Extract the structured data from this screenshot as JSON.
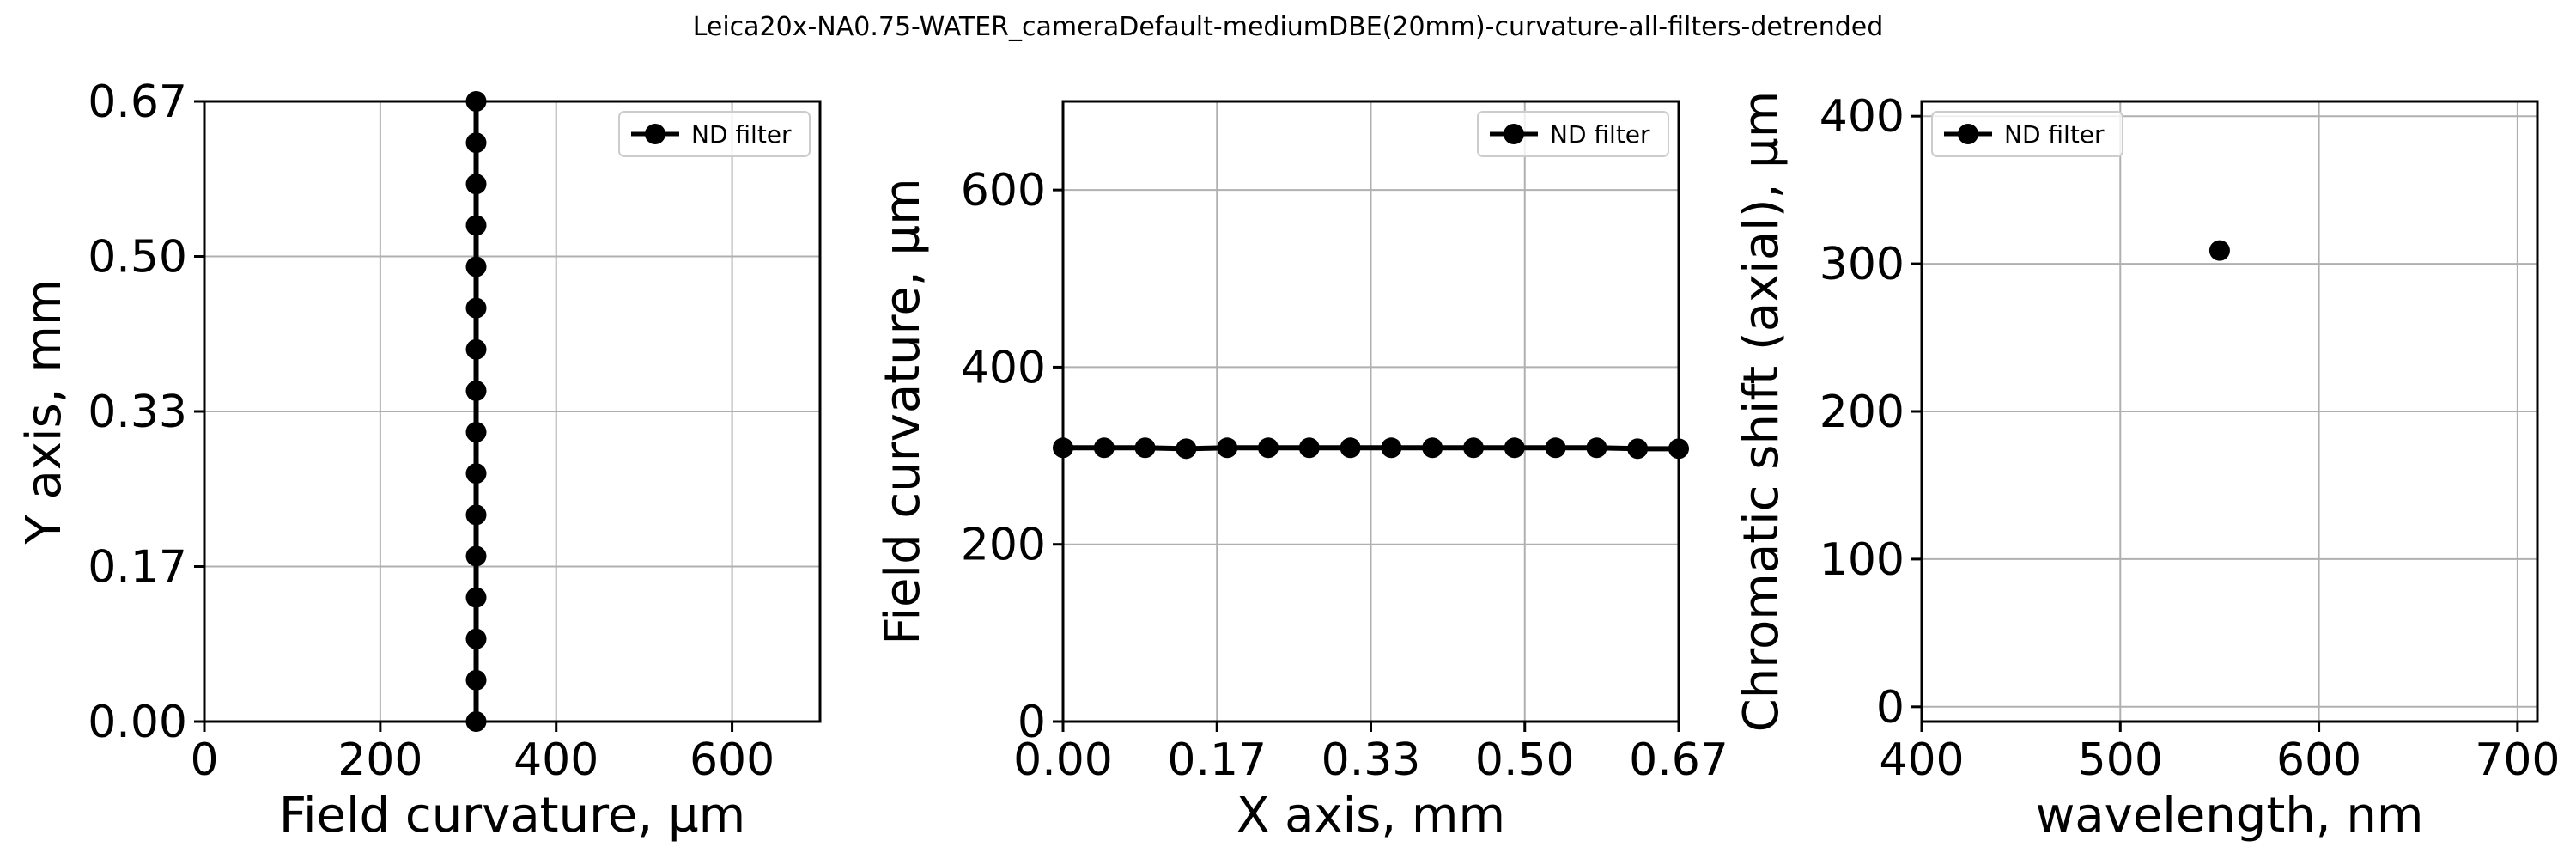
{
  "figure": {
    "title": "Leica20x-NA0.75-WATER_cameraDefault-mediumDBE(20mm)-curvature-all-filters-detrended"
  },
  "chart_data": [
    {
      "type": "line",
      "xlabel": "Field curvature, µm",
      "ylabel": "Y axis, mm",
      "xlim": [
        0,
        700
      ],
      "ylim": [
        0,
        0.67
      ],
      "xticks": [
        0,
        200,
        400,
        600
      ],
      "xtick_labels": [
        "0",
        "200",
        "400",
        "600"
      ],
      "yticks": [
        0,
        0.1675,
        0.335,
        0.5025,
        0.67
      ],
      "ytick_labels": [
        "0.00",
        "0.17",
        "0.33",
        "0.50",
        "0.67"
      ],
      "grid": true,
      "legend_position": "top-right",
      "series": [
        {
          "name": "ND filter",
          "color": "#000000",
          "x": [
            309,
            309,
            309,
            309,
            309,
            309,
            309,
            309,
            309,
            309,
            309,
            309,
            309,
            309,
            309,
            309
          ],
          "y": [
            0,
            0.0447,
            0.0893,
            0.134,
            0.1787,
            0.2233,
            0.268,
            0.3127,
            0.3573,
            0.402,
            0.4467,
            0.4913,
            0.536,
            0.5807,
            0.6253,
            0.67
          ]
        }
      ]
    },
    {
      "type": "line",
      "xlabel": "X axis, mm",
      "ylabel": "Field curvature, µm",
      "xlim": [
        0,
        0.67
      ],
      "ylim": [
        0,
        700
      ],
      "xticks": [
        0,
        0.1675,
        0.335,
        0.5025,
        0.67
      ],
      "xtick_labels": [
        "0.00",
        "0.17",
        "0.33",
        "0.50",
        "0.67"
      ],
      "yticks": [
        0,
        200,
        400,
        600
      ],
      "ytick_labels": [
        "0",
        "200",
        "400",
        "600"
      ],
      "grid": true,
      "legend_position": "top-right",
      "series": [
        {
          "name": "ND filter",
          "color": "#000000",
          "x": [
            0,
            0.0447,
            0.0893,
            0.134,
            0.1787,
            0.2233,
            0.268,
            0.3127,
            0.3573,
            0.402,
            0.4467,
            0.4913,
            0.536,
            0.5807,
            0.6253,
            0.67
          ],
          "y": [
            309,
            309,
            309,
            308,
            309,
            309,
            309,
            309,
            309,
            309,
            309,
            309,
            309,
            309,
            308,
            308
          ]
        }
      ]
    },
    {
      "type": "scatter",
      "xlabel": "wavelength, nm",
      "ylabel": "Chromatic shift (axial), µm",
      "xlim": [
        400,
        710
      ],
      "ylim": [
        -10,
        410
      ],
      "xticks": [
        400,
        500,
        600,
        700
      ],
      "xtick_labels": [
        "400",
        "500",
        "600",
        "700"
      ],
      "yticks": [
        0,
        100,
        200,
        300,
        400
      ],
      "ytick_labels": [
        "0",
        "100",
        "200",
        "300",
        "400"
      ],
      "grid": true,
      "legend_position": "top-left",
      "series": [
        {
          "name": "ND filter",
          "color": "#000000",
          "x": [
            550
          ],
          "y": [
            309
          ]
        }
      ]
    }
  ]
}
